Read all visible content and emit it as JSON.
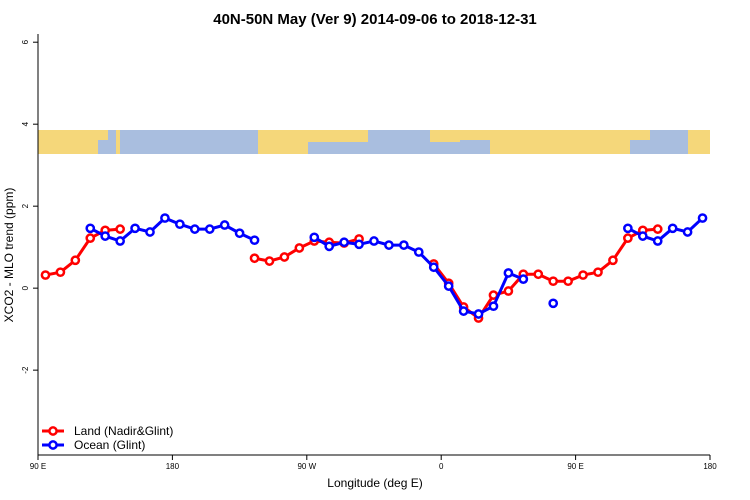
{
  "chart_data": {
    "type": "line",
    "title": "40N-50N May (Ver 9)   2014-09-06 to 2018-12-31",
    "xlabel": "Longitude (deg E)",
    "ylabel": "XCO2 - MLO trend (ppm)",
    "x": [
      95,
      105,
      115,
      125,
      135,
      145,
      155,
      165,
      175,
      185,
      195,
      205,
      215,
      225,
      235,
      245,
      255,
      265,
      275,
      285,
      295,
      305,
      315,
      325,
      335,
      345,
      355,
      365,
      375,
      385,
      395,
      405,
      415,
      425,
      435,
      445,
      455,
      465,
      475,
      485,
      495,
      505,
      515,
      525,
      535
    ],
    "series": [
      {
        "name": "Land (Nadir&Glint)",
        "color": "#ff0000",
        "values": [
          0.32,
          0.39,
          0.68,
          1.22,
          1.41,
          1.44,
          null,
          null,
          null,
          null,
          null,
          null,
          null,
          null,
          0.73,
          0.66,
          0.76,
          0.98,
          1.15,
          1.12,
          1.1,
          1.2,
          null,
          null,
          null,
          null,
          0.59,
          0.12,
          -0.46,
          -0.73,
          -0.17,
          -0.07,
          0.34,
          0.34,
          0.17,
          0.17,
          0.32,
          0.39,
          0.68,
          1.22,
          1.41,
          1.44,
          null,
          null,
          null
        ]
      },
      {
        "name": "Ocean (Glint)",
        "color": "#0000ff",
        "values": [
          null,
          null,
          null,
          1.46,
          1.27,
          1.15,
          1.46,
          1.37,
          1.71,
          1.56,
          1.44,
          1.44,
          1.54,
          1.34,
          1.17,
          null,
          null,
          null,
          1.24,
          1.02,
          1.12,
          1.07,
          1.15,
          1.05,
          1.05,
          0.88,
          0.51,
          0.05,
          -0.56,
          -0.63,
          -0.44,
          0.37,
          0.22,
          null,
          -0.37,
          null,
          null,
          null,
          null,
          1.46,
          1.27,
          1.15,
          1.46,
          1.37,
          1.71
        ]
      }
    ],
    "xlim": [
      90,
      540
    ],
    "xticks": [
      {
        "value": 90,
        "label": "90 E"
      },
      180,
      {
        "value": 270,
        "label": "90 W"
      },
      {
        "value": 360,
        "label": "0"
      },
      {
        "value": 450,
        "label": "90 E"
      },
      {
        "value": 540,
        "label": "180"
      }
    ],
    "ylim": [
      -4.07,
      6.2
    ],
    "yticks": [
      -2,
      0,
      2,
      4,
      6
    ],
    "legend": "bottomleft"
  }
}
